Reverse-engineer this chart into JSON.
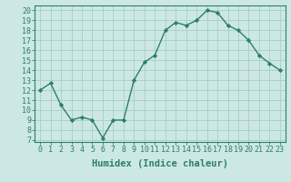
{
  "x": [
    0,
    1,
    2,
    3,
    4,
    5,
    6,
    7,
    8,
    9,
    10,
    11,
    12,
    13,
    14,
    15,
    16,
    17,
    18,
    19,
    20,
    21,
    22,
    23
  ],
  "y": [
    12.0,
    12.7,
    10.5,
    9.0,
    9.3,
    9.0,
    7.2,
    9.0,
    9.0,
    13.0,
    14.8,
    15.5,
    18.0,
    18.8,
    18.5,
    19.0,
    20.0,
    19.8,
    18.5,
    18.0,
    17.0,
    15.5,
    14.7,
    14.0
  ],
  "line_color": "#2e7d6e",
  "bg_color": "#cce8e4",
  "grid_color": "#a8cdc8",
  "xlabel": "Humidex (Indice chaleur)",
  "xlim": [
    -0.5,
    23.5
  ],
  "ylim": [
    6.8,
    20.5
  ],
  "yticks": [
    7,
    8,
    9,
    10,
    11,
    12,
    13,
    14,
    15,
    16,
    17,
    18,
    19,
    20
  ],
  "xticks": [
    0,
    1,
    2,
    3,
    4,
    5,
    6,
    7,
    8,
    9,
    10,
    11,
    12,
    13,
    14,
    15,
    16,
    17,
    18,
    19,
    20,
    21,
    22,
    23
  ],
  "marker": "D",
  "marker_size": 2.2,
  "line_width": 1.0,
  "xlabel_fontsize": 7.5,
  "tick_fontsize": 6.0
}
